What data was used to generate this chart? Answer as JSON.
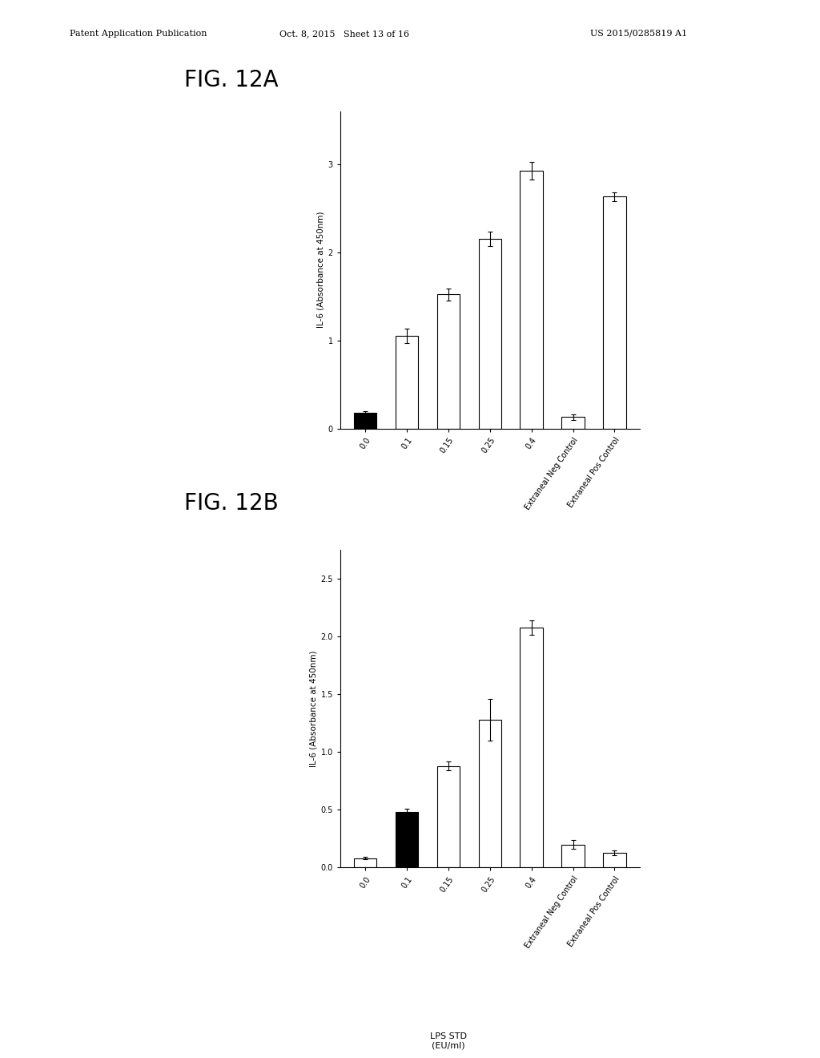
{
  "fig_a": {
    "categories": [
      "0.0",
      "0.1",
      "0.15",
      "0.25",
      "0.4",
      "Extraneal Neg Control",
      "Extraneal Pos Control"
    ],
    "values": [
      0.18,
      1.05,
      1.52,
      2.15,
      2.92,
      0.13,
      2.63
    ],
    "errors": [
      0.02,
      0.08,
      0.07,
      0.08,
      0.1,
      0.03,
      0.05
    ],
    "bar_colors": [
      "#000000",
      "#ffffff",
      "#ffffff",
      "#ffffff",
      "#ffffff",
      "#ffffff",
      "#ffffff"
    ],
    "bar_edgecolor": "#000000",
    "ylabel": "IL-6 (Absorbance at 450nm)",
    "ylim": [
      0,
      3.6
    ],
    "yticks": [
      0,
      1,
      2,
      3
    ]
  },
  "fig_b": {
    "categories": [
      "0.0",
      "0.1",
      "0.15",
      "0.25",
      "0.4",
      "Extraneal Neg Control",
      "Extraneal Pos Control"
    ],
    "values": [
      0.08,
      0.48,
      0.88,
      1.28,
      2.08,
      0.2,
      0.13
    ],
    "errors": [
      0.01,
      0.03,
      0.04,
      0.18,
      0.06,
      0.04,
      0.02
    ],
    "bar_colors": [
      "#ffffff",
      "#000000",
      "#ffffff",
      "#ffffff",
      "#ffffff",
      "#ffffff",
      "#ffffff"
    ],
    "bar_edgecolor": "#000000",
    "ylabel": "IL-6 (Absorbance at 450nm)",
    "ylim": [
      0,
      2.75
    ],
    "yticks": [
      0.0,
      0.5,
      1.0,
      1.5,
      2.0,
      2.5
    ]
  },
  "xlabel_lps": "LPS STD\n(EU/ml)",
  "header_left": "Patent Application Publication",
  "header_mid": "Oct. 8, 2015   Sheet 13 of 16",
  "header_right": "US 2015/0285819 A1",
  "label_a": "FIG. 12A",
  "label_b": "FIG. 12B",
  "background_color": "#ffffff",
  "text_color": "#000000",
  "bar_width": 0.55,
  "fontsize_ticks": 7,
  "fontsize_ylabel": 7.5,
  "fontsize_xlabel": 8
}
